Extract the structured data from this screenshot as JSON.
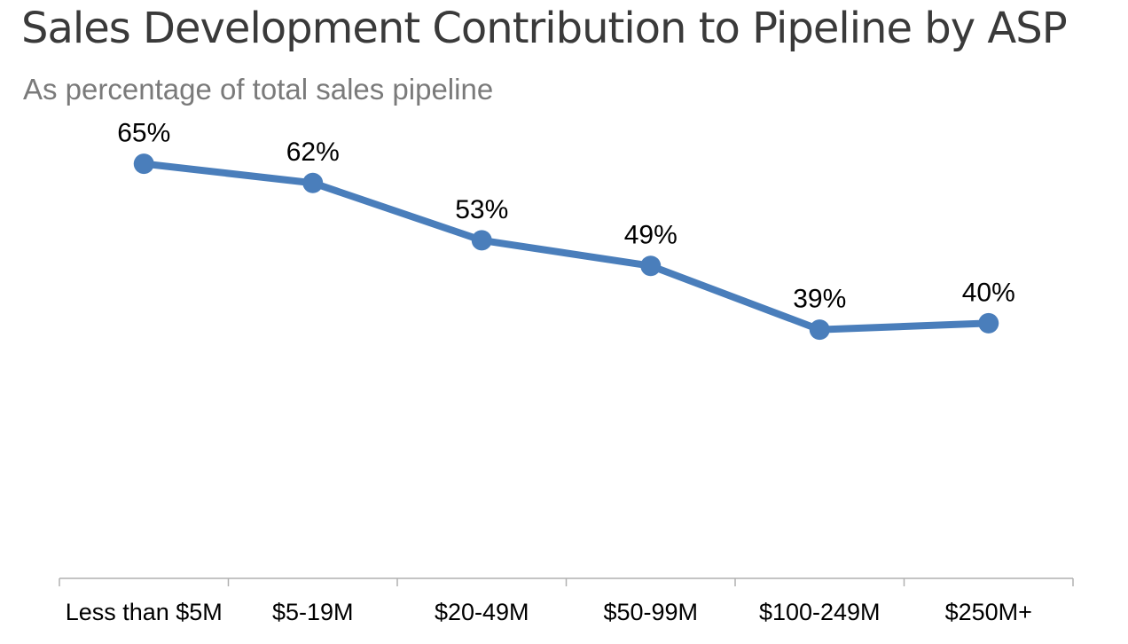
{
  "chart_data": {
    "type": "line",
    "title": "Sales Development Contribution to Pipeline by ASP",
    "subtitle": "As percentage of total sales pipeline",
    "categories": [
      "Less than $5M",
      "$5-19M",
      "$20-49M",
      "$50-99M",
      "$100-249M",
      "$250M+"
    ],
    "series": [
      {
        "name": "Sales Development Contribution",
        "values": [
          65,
          62,
          53,
          49,
          39,
          40
        ],
        "labels": [
          "65%",
          "62%",
          "53%",
          "49%",
          "39%",
          "40%"
        ]
      }
    ],
    "xlabel": "",
    "ylabel": "",
    "ylim": [
      0,
      100
    ],
    "grid": false,
    "legend": "none",
    "color": "#4a7ebb"
  }
}
